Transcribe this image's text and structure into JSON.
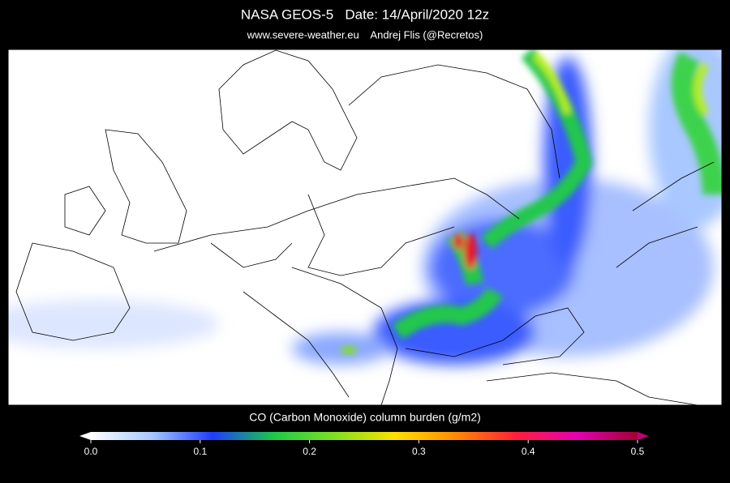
{
  "header": {
    "title": "NASA GEOS-5   Date: 14/April/2020 12z",
    "subtitle": "www.severe-weather.eu    Andrej Flis (@Recretos)"
  },
  "colorbar": {
    "label": "CO (Carbon Monoxide) column burden (g/m2)",
    "range": [
      0,
      0.5
    ],
    "ticks": [
      {
        "value": 0,
        "label": "0.0"
      },
      0.1,
      0.2,
      0.3,
      0.4,
      0.5
    ],
    "colors": [
      "#ffffff",
      "#a8c8ff",
      "#1e3cff",
      "#19c84b",
      "#7ee01e",
      "#ffe000",
      "#ff8c00",
      "#ff1e3c",
      "#e600b4",
      "#a00032"
    ]
  }
}
